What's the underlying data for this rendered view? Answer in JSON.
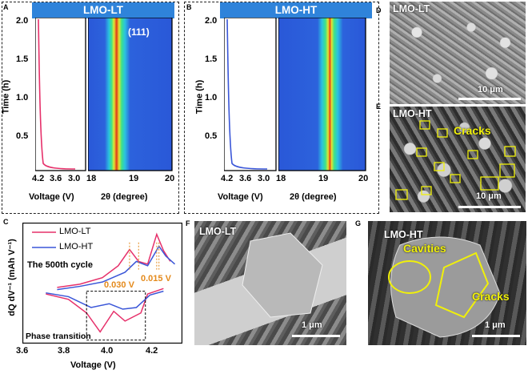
{
  "panels": {
    "A": {
      "letter": "A",
      "banner": "LMO-LT",
      "ylabel": "Time (h)",
      "xlabel_v": "Voltage (V)",
      "xlabel_2t": "2θ (degree)",
      "peak_label": "(111)",
      "yticks": [
        "2.0",
        "1.5",
        "1.0",
        "0.5"
      ],
      "vticks": [
        "4.2",
        "3.6",
        "3.0"
      ],
      "tticks": [
        "18",
        "19",
        "20"
      ]
    },
    "B": {
      "letter": "B",
      "banner": "LMO-HT",
      "ylabel": "Time (h)",
      "xlabel_v": "Voltage (V)",
      "xlabel_2t": "2θ (degree)",
      "yticks": [
        "2.0",
        "1.5",
        "1.0",
        "0.5"
      ],
      "vticks": [
        "4.2",
        "3.6",
        "3.0"
      ],
      "tticks": [
        "18",
        "19",
        "20"
      ]
    },
    "D": {
      "letter": "D",
      "label": "LMO-LT",
      "scale": "10 μm"
    },
    "E": {
      "letter": "E",
      "label": "LMO-HT",
      "note": "Cracks",
      "scale": "10 μm"
    },
    "F": {
      "letter": "F",
      "label": "LMO-LT",
      "scale": "1 μm"
    },
    "G": {
      "letter": "G",
      "label": "LMO-HT",
      "cavities": "Cavities",
      "cracks": "Cracks",
      "scale": "1 μm"
    }
  },
  "chart_data": {
    "type": "line",
    "letter": "C",
    "title": "The 500th cycle",
    "xlabel": "Voltage (V)",
    "ylabel": "dQ dV⁻¹ (mAh V⁻¹)",
    "xticks": [
      "3.6",
      "3.8",
      "4.0",
      "4.2"
    ],
    "xlim": [
      3.6,
      4.3
    ],
    "legend": [
      "LMO-LT",
      "LMO-HT"
    ],
    "annotations": [
      "0.030 V",
      "0.015 V",
      "Phase transition"
    ],
    "series": [
      {
        "name": "LMO-LT",
        "color": "#e6306a",
        "charge": [
          [
            3.75,
            0.02
          ],
          [
            3.85,
            0.08
          ],
          [
            3.95,
            0.2
          ],
          [
            4.02,
            0.42
          ],
          [
            4.07,
            0.72
          ],
          [
            4.11,
            0.5
          ],
          [
            4.15,
            0.45
          ],
          [
            4.19,
            1.0
          ],
          [
            4.22,
            0.7
          ],
          [
            4.25,
            0.5
          ]
        ],
        "discharge": [
          [
            4.22,
            0.0
          ],
          [
            4.15,
            -0.1
          ],
          [
            4.12,
            -0.45
          ],
          [
            4.05,
            -0.6
          ],
          [
            4.0,
            -0.42
          ],
          [
            3.94,
            -0.8
          ],
          [
            3.88,
            -0.45
          ],
          [
            3.8,
            -0.2
          ],
          [
            3.7,
            -0.1
          ]
        ]
      },
      {
        "name": "LMO-HT",
        "color": "#3a56d8",
        "charge": [
          [
            3.75,
            -0.02
          ],
          [
            3.85,
            0.04
          ],
          [
            3.95,
            0.12
          ],
          [
            4.05,
            0.3
          ],
          [
            4.1,
            0.5
          ],
          [
            4.15,
            0.42
          ],
          [
            4.2,
            0.78
          ],
          [
            4.23,
            0.6
          ],
          [
            4.27,
            0.45
          ]
        ],
        "discharge": [
          [
            4.22,
            -0.05
          ],
          [
            4.16,
            -0.12
          ],
          [
            4.1,
            -0.35
          ],
          [
            4.04,
            -0.38
          ],
          [
            3.98,
            -0.28
          ],
          [
            3.9,
            -0.35
          ],
          [
            3.8,
            -0.15
          ],
          [
            3.7,
            -0.08
          ]
        ]
      }
    ]
  }
}
